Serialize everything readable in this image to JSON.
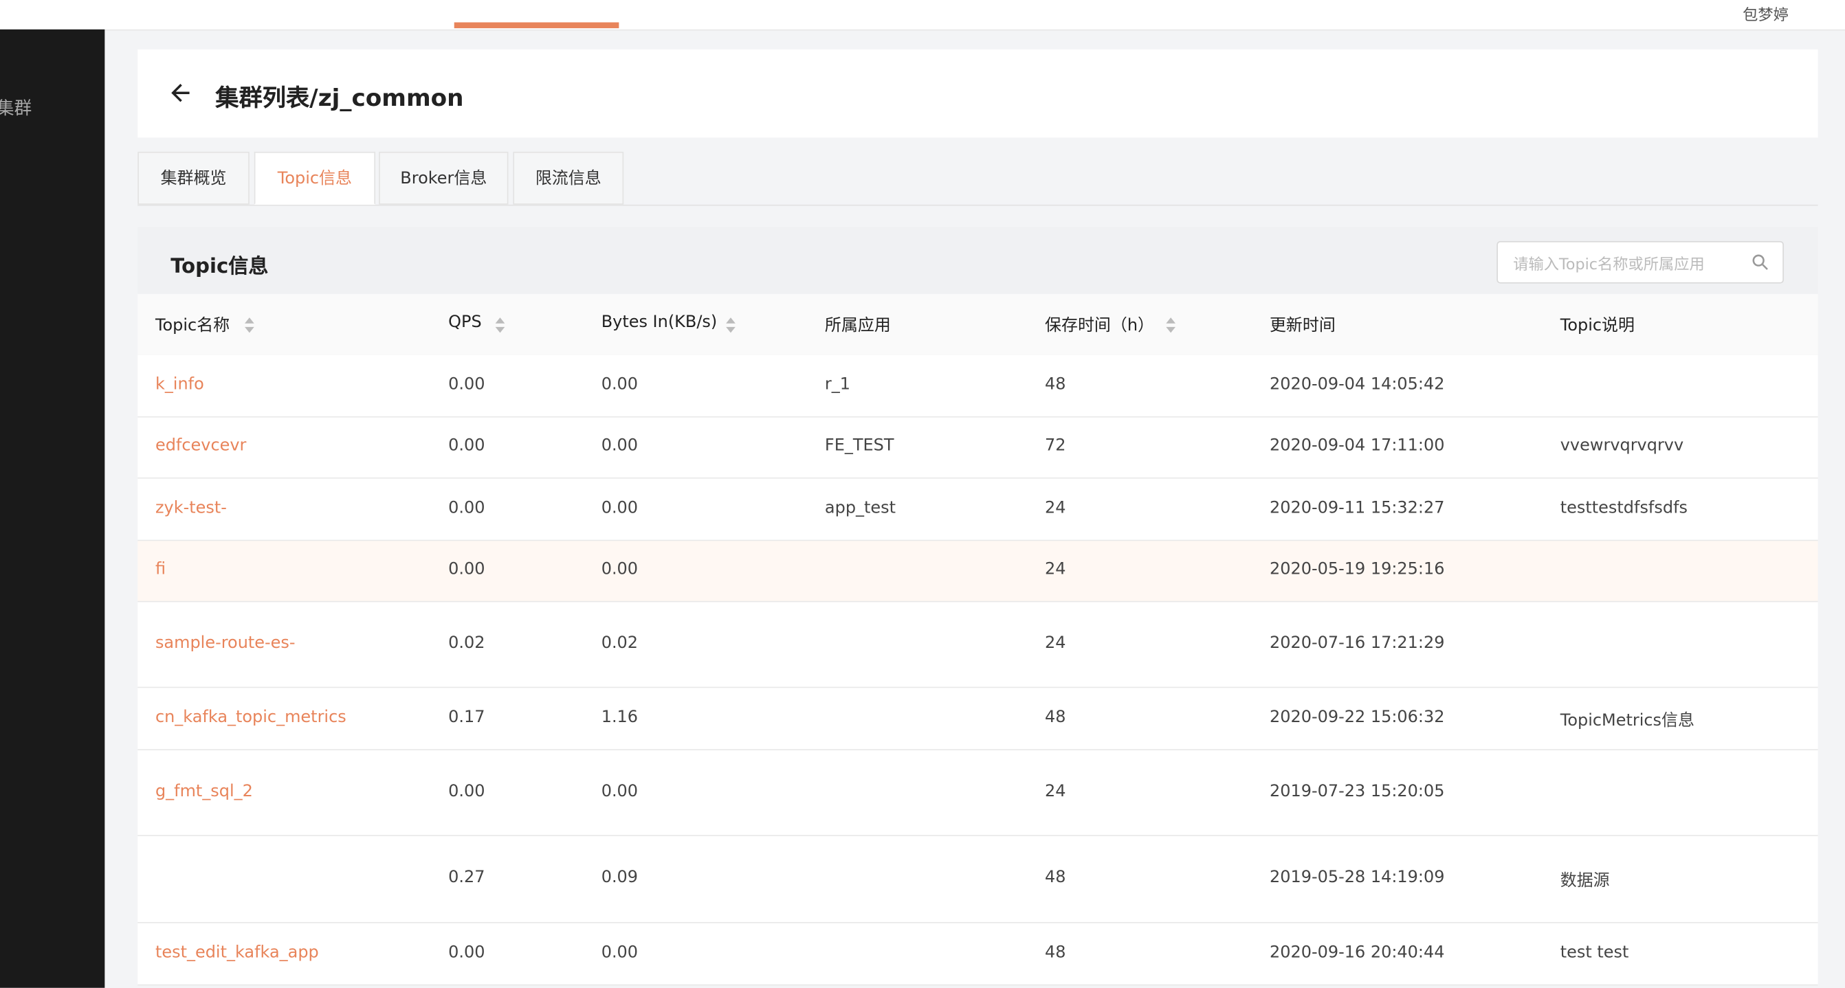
{
  "topbar": {
    "user": "包梦婷"
  },
  "sidebar": {
    "item": "集群"
  },
  "header": {
    "title": "集群列表/zj_common"
  },
  "tabs": [
    "集群概览",
    "Topic信息",
    "Broker信息",
    "限流信息"
  ],
  "section": {
    "title": "Topic信息",
    "search_placeholder": "请输入Topic名称或所属应用"
  },
  "table": {
    "columns": [
      "Topic名称",
      "QPS",
      "Bytes In(KB/s)",
      "所属应用",
      "保存时间（h）",
      "更新时间",
      "Topic说明"
    ],
    "rows": [
      [
        "k_info",
        "0.00",
        "0.00",
        "r_1",
        "48",
        "2020-09-04 14:05:42",
        null
      ],
      [
        "edfcevcevr",
        "0.00",
        "0.00",
        "FE_TEST",
        "72",
        "2020-09-04 17:11:00",
        "vvewrvqrvqrvv"
      ],
      [
        "zyk-test-",
        "0.00",
        "0.00",
        "app_test",
        "24",
        "2020-09-11 15:32:27",
        "testtestdfsfsdfs"
      ],
      [
        "fi",
        "0.00",
        "0.00",
        null,
        "24",
        "2020-05-19 19:25:16",
        null
      ],
      [
        "sample-route-es-",
        "0.02",
        "0.02",
        null,
        "24",
        "2020-07-16 17:21:29",
        null
      ],
      [
        "cn_kafka_topic_metrics",
        "0.17",
        "1.16",
        null,
        "48",
        "2020-09-22 15:06:32",
        "TopicMetrics信息"
      ],
      [
        "g_fmt_sql_2",
        "0.00",
        "0.00",
        null,
        "24",
        "2019-07-23 15:20:05",
        null
      ],
      [
        null,
        "0.27",
        "0.09",
        null,
        "48",
        "2019-05-28 14:19:09",
        "数据源"
      ],
      [
        "test_edit_kafka_app",
        "0.00",
        "0.00",
        null,
        "48",
        "2020-09-16 20:40:44",
        "test test"
      ]
    ]
  }
}
